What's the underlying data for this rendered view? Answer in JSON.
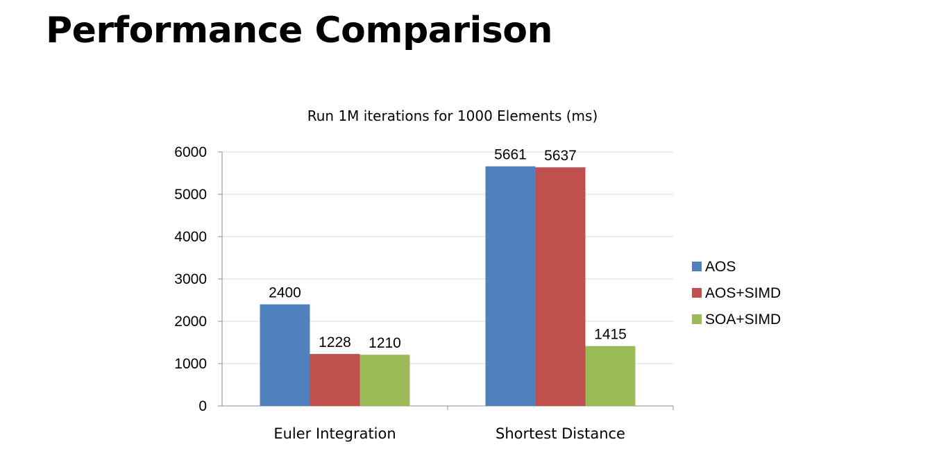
{
  "slide": {
    "title": "Performance Comparison"
  },
  "chart_data": {
    "type": "bar",
    "title": "Run 1M iterations for 1000 Elements (ms)",
    "xlabel": "",
    "ylabel": "",
    "categories": [
      "Euler Integration",
      "Shortest Distance"
    ],
    "series": [
      {
        "name": "AOS",
        "color": "#4f81bd",
        "values": [
          2400,
          5661
        ]
      },
      {
        "name": "AOS+SIMD",
        "color": "#c0504d",
        "values": [
          1228,
          5637
        ]
      },
      {
        "name": "SOA+SIMD",
        "color": "#9bbb59",
        "values": [
          1210,
          1415
        ]
      }
    ],
    "ylim": [
      0,
      6000
    ],
    "yticks": [
      0,
      1000,
      2000,
      3000,
      4000,
      5000,
      6000
    ],
    "grid": true,
    "legend_position": "right"
  }
}
